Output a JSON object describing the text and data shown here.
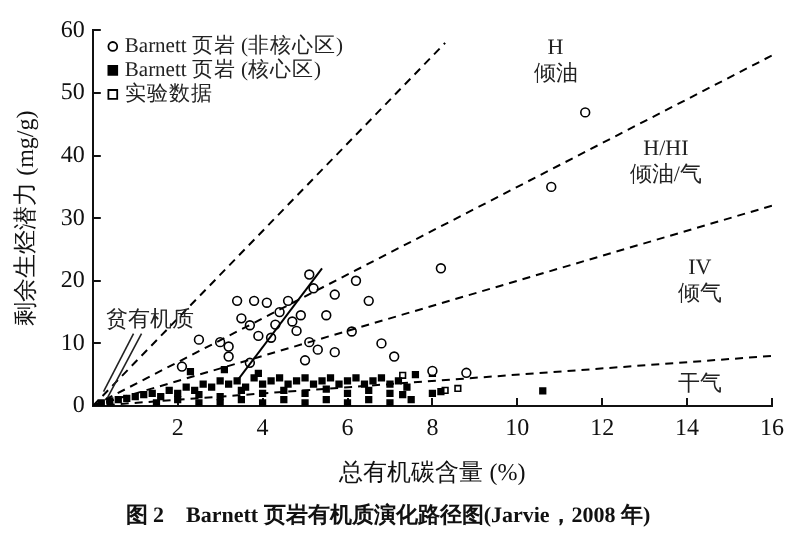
{
  "chart_data": {
    "type": "scatter",
    "title": "图 2　Barnett 页岩有机质演化路径图(Jarvie，2008 年)",
    "xlabel": "总有机碳含量 (%)",
    "ylabel": "剩余生烃潜力 (mg/g)",
    "xlim": [
      0,
      16
    ],
    "ylim": [
      0,
      60
    ],
    "xticks": [
      {
        "value": 0,
        "label": null
      },
      2,
      4,
      6,
      8,
      10,
      12,
      14,
      16
    ],
    "yticks": [
      0,
      10,
      20,
      30,
      40,
      50,
      60
    ],
    "grid": false,
    "legend": "top left",
    "annotations": [
      "H 倾油",
      "H/HI 倾油/气",
      "IV 倾气",
      "干气",
      {
        "text": "贫有机质",
        "x": 0.3,
        "y": 1
      }
    ],
    "series": [
      {
        "name": "Barnett 页岩 (非核心区)",
        "color": "#000000",
        "marker": "circle",
        "x": [
          11.6,
          10.8,
          8.2,
          8.0,
          8.8,
          3.4,
          3.8,
          4.4,
          4.9,
          5.2,
          5.7,
          6.2,
          2.5,
          3.0,
          3.2,
          3.9,
          4.2,
          5.1,
          5.7,
          5.0,
          3.7,
          3.2,
          6.5,
          2.1,
          4.6,
          3.7,
          4.7,
          5.5,
          4.1,
          6.1,
          7.1,
          5.1,
          4.3,
          4.8,
          3.5,
          5.3,
          6.8
        ],
        "values": [
          46.9,
          35,
          22,
          5.6,
          5.3,
          16.8,
          16.8,
          15,
          14.5,
          18.8,
          17.8,
          20,
          10.6,
          10.2,
          9.5,
          11.2,
          10.9,
          10.2,
          8.6,
          7.3,
          6.9,
          7.9,
          16.8,
          6.3,
          16.8,
          12.9,
          13.5,
          14.5,
          16.5,
          11.9,
          7.9,
          21,
          13,
          12,
          14,
          9,
          10
        ]
      },
      {
        "name": "Barnett 页岩 (核心区)",
        "color": "#000000",
        "marker": "square",
        "x": [
          0.2,
          0.4,
          0.6,
          0.8,
          1.0,
          1.2,
          1.4,
          1.6,
          1.8,
          2.0,
          2.2,
          2.4,
          2.6,
          2.8,
          3.0,
          3.2,
          3.4,
          3.6,
          3.8,
          4.0,
          4.2,
          4.4,
          4.6,
          4.8,
          5.0,
          5.2,
          5.4,
          5.6,
          5.8,
          6.0,
          6.2,
          6.4,
          6.6,
          6.8,
          7.0,
          7.2,
          7.4,
          1.5,
          2.0,
          2.5,
          3.0,
          3.5,
          4.0,
          4.5,
          5.0,
          5.5,
          6.0,
          6.5,
          7.0,
          7.5,
          2.5,
          3.5,
          4.5,
          5.5,
          6.5,
          3.0,
          4.0,
          5.0,
          6.0,
          7.0,
          7.3,
          8.0,
          8.2,
          10.6,
          7.6,
          8.0,
          2.3,
          3.1,
          3.9
        ],
        "values": [
          0.5,
          0.8,
          1,
          1.2,
          1.5,
          1.8,
          2,
          1.5,
          2.5,
          2,
          3,
          2.5,
          3.5,
          3,
          4,
          3.5,
          4,
          3,
          4.5,
          3.5,
          4,
          4.5,
          3.5,
          4,
          4.5,
          3.5,
          4,
          4.5,
          3.5,
          4,
          4.5,
          3.5,
          4,
          4.5,
          3.5,
          4,
          3,
          0.5,
          1,
          0.5,
          1.5,
          1,
          2,
          1,
          2,
          1,
          2,
          1,
          2,
          1,
          1.8,
          2.5,
          2.5,
          2.7,
          2.5,
          0.5,
          0.5,
          0.5,
          0.5,
          0.5,
          1.8,
          2,
          2.3,
          2.4,
          5,
          5.2,
          5.5,
          5.8,
          5.2
        ]
      },
      {
        "name": "实验数据",
        "color": "#000000",
        "marker": "square",
        "x": [
          7.3,
          8.3,
          8.6
        ],
        "values": [
          4.9,
          2.5,
          2.8
        ]
      },
      {
        "type": "line",
        "color": "#000000",
        "line_style": "dashed",
        "marker": "none",
        "x": [
          0,
          8.3
        ],
        "values": [
          0,
          58
        ]
      },
      {
        "type": "line",
        "color": "#000000",
        "line_style": "dashed",
        "marker": "none",
        "x": [
          0,
          16
        ],
        "values": [
          0,
          56
        ]
      },
      {
        "type": "line",
        "color": "#000000",
        "line_style": "dashed",
        "marker": "none",
        "x": [
          0,
          16
        ],
        "values": [
          0,
          32
        ]
      },
      {
        "type": "line",
        "color": "#000000",
        "line_style": "dashed",
        "marker": "none",
        "x": [
          0,
          16
        ],
        "values": [
          0,
          8
        ]
      },
      {
        "type": "line",
        "color": "#000000",
        "line_style": "solid",
        "marker": "none",
        "x": [
          3.4,
          5.4
        ],
        "values": [
          4,
          22
        ]
      }
    ]
  }
}
